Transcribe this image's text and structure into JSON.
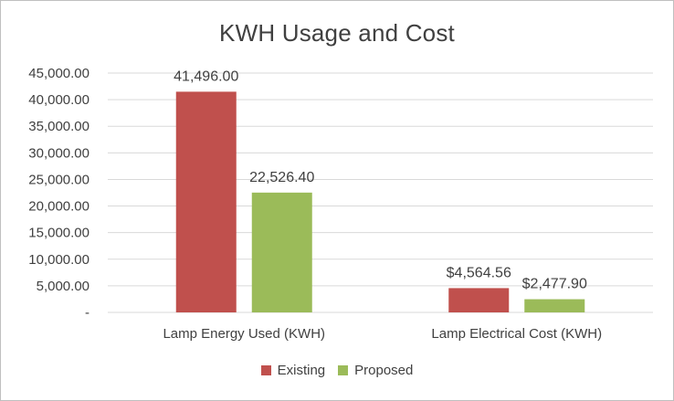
{
  "chart_data": {
    "type": "bar",
    "title": "KWH Usage and Cost",
    "xlabel": "",
    "ylabel": "",
    "ylim": [
      0,
      45000
    ],
    "yticks": [
      0,
      5000,
      10000,
      15000,
      20000,
      25000,
      30000,
      35000,
      40000,
      45000
    ],
    "ytick_labels": [
      "-",
      "5,000.00",
      "10,000.00",
      "15,000.00",
      "20,000.00",
      "25,000.00",
      "30,000.00",
      "35,000.00",
      "40,000.00",
      "45,000.00"
    ],
    "grid": true,
    "legend_position": "bottom",
    "categories": [
      "Lamp Energy Used (KWH)",
      "Lamp Electrical Cost (KWH)"
    ],
    "series": [
      {
        "name": "Existing",
        "color": "#c0504d",
        "values": [
          41496.0,
          4564.56
        ],
        "labels": [
          "41,496.00",
          "$4,564.56"
        ]
      },
      {
        "name": "Proposed",
        "color": "#9bbb59",
        "values": [
          22526.4,
          2477.9
        ],
        "labels": [
          "22,526.40",
          "$2,477.90"
        ]
      }
    ]
  }
}
